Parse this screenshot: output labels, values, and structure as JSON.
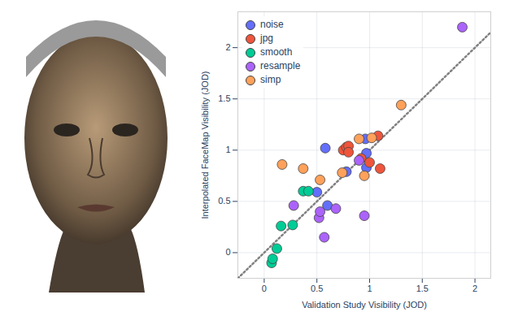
{
  "chart_data": {
    "type": "scatter",
    "x_label": "Validation Study Visibility (JOD)",
    "y_label": "Interpolated FaceMap Visibility (JOD)",
    "xlim": [
      -0.25,
      2.15
    ],
    "ylim": [
      -0.25,
      2.35
    ],
    "xticks": [
      0,
      0.5,
      1,
      1.5,
      2
    ],
    "yticks": [
      0,
      0.5,
      1,
      1.5,
      2
    ],
    "grid": true,
    "legend": "top-left",
    "marker": "circle",
    "series": [
      {
        "name": "noise",
        "color": "#636efa",
        "x": [
          0.58,
          0.5,
          0.6,
          0.97,
          0.97,
          0.96,
          0.78
        ],
        "y": [
          1.02,
          0.59,
          0.46,
          0.97,
          0.83,
          1.11,
          0.79
        ]
      },
      {
        "name": "jpg",
        "color": "#ef553b",
        "x": [
          0.75,
          0.78,
          0.8,
          0.8,
          0.92,
          1.0,
          1.08,
          1.1
        ],
        "y": [
          1.0,
          1.03,
          1.04,
          0.98,
          0.92,
          0.88,
          1.14,
          0.82
        ]
      },
      {
        "name": "smooth",
        "color": "#00cc96",
        "x": [
          0.07,
          0.08,
          0.12,
          0.16,
          0.27,
          0.37,
          0.42
        ],
        "y": [
          -0.1,
          -0.06,
          0.04,
          0.26,
          0.27,
          0.6,
          0.6
        ]
      },
      {
        "name": "resample",
        "color": "#ab63fa",
        "x": [
          1.88,
          0.28,
          0.52,
          0.53,
          0.57,
          0.68,
          0.95,
          0.9
        ],
        "y": [
          2.2,
          0.46,
          0.34,
          0.4,
          0.15,
          0.43,
          0.36,
          0.9
        ]
      },
      {
        "name": "simp",
        "color": "#ffa15a",
        "x": [
          0.17,
          0.37,
          0.53,
          0.74,
          0.9,
          0.95,
          1.02,
          1.3
        ],
        "y": [
          0.86,
          0.82,
          0.71,
          0.78,
          1.11,
          0.75,
          1.12,
          1.44
        ]
      }
    ]
  }
}
